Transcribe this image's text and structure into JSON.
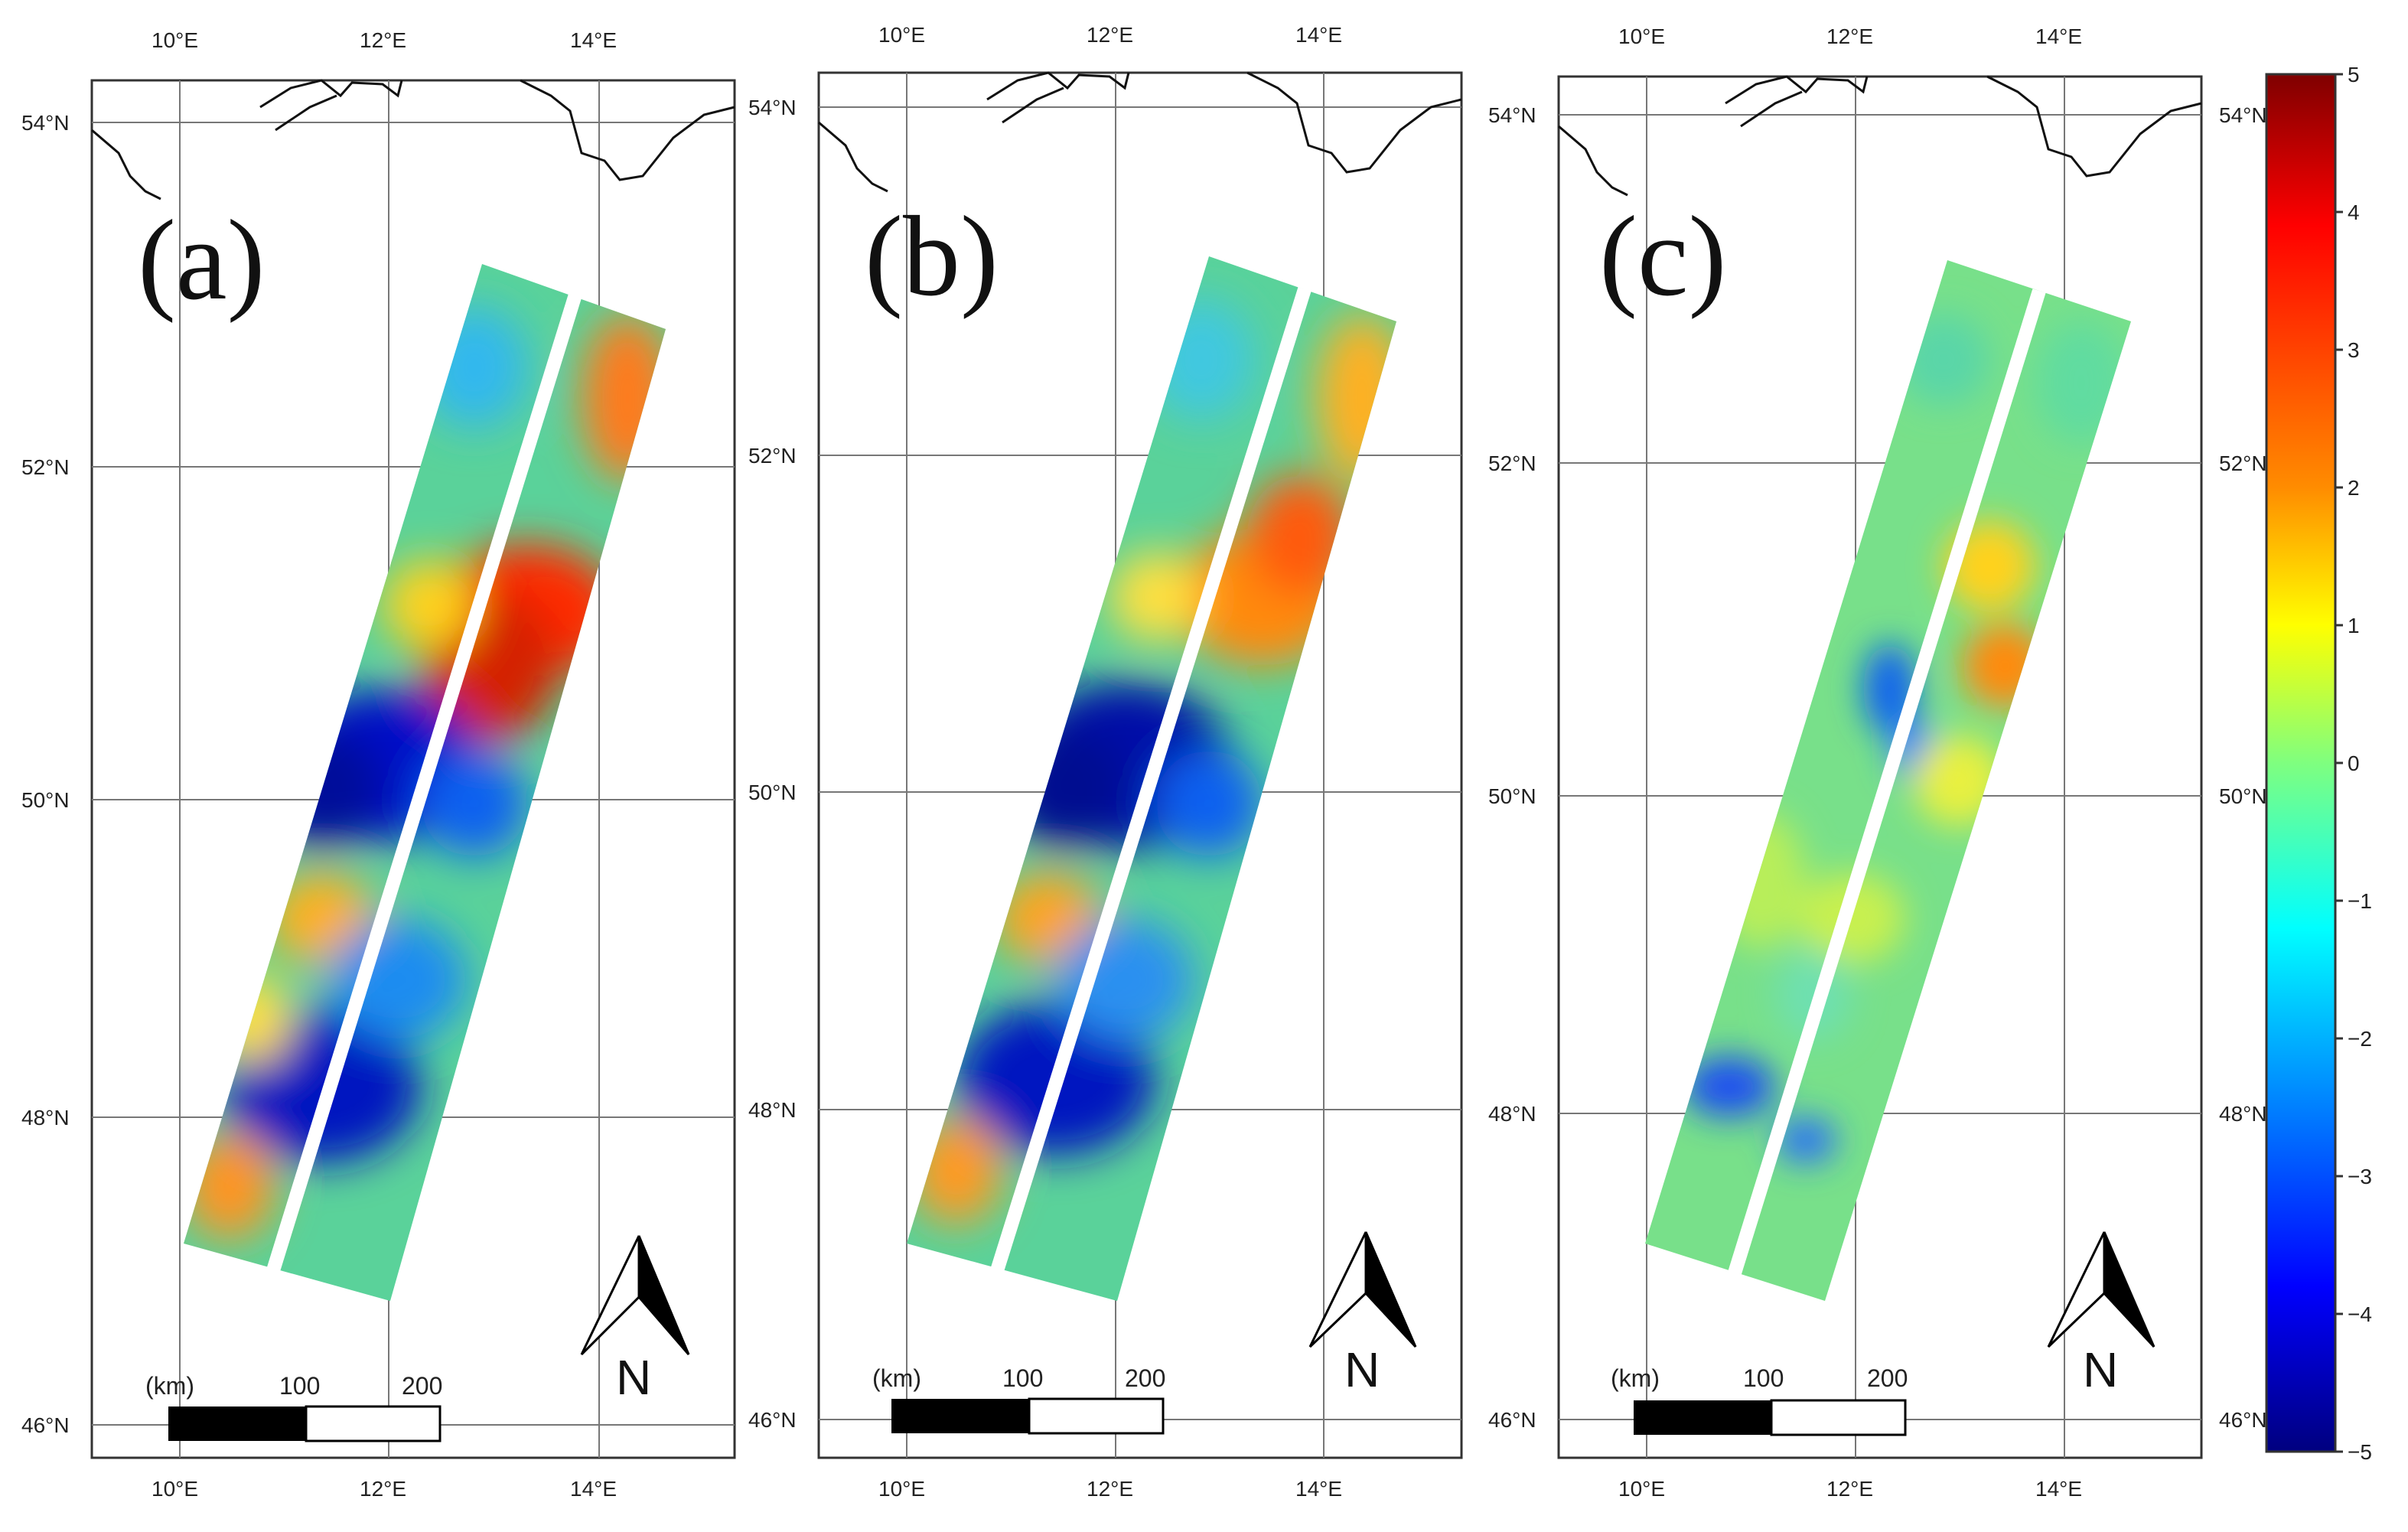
{
  "panels": [
    {
      "id": "a",
      "label": "(a)",
      "lon_labels": [
        "10°E",
        "12°E",
        "14°E"
      ],
      "lat_labels": [
        "54°N",
        "52°N",
        "50°N",
        "48°N",
        "46°N"
      ],
      "scale_labels": [
        "(km)",
        "100",
        "200"
      ],
      "north_label": "N"
    },
    {
      "id": "b",
      "label": "(b)",
      "lon_labels": [
        "10°E",
        "12°E",
        "14°E"
      ],
      "lat_labels": [
        "54°N",
        "52°N",
        "50°N",
        "48°N",
        "46°N"
      ],
      "scale_labels": [
        "(km)",
        "100",
        "200"
      ],
      "north_label": "N"
    },
    {
      "id": "c",
      "label": "(c)",
      "lon_labels": [
        "10°E",
        "12°E",
        "14°E"
      ],
      "lat_labels": [
        "54°N",
        "52°N",
        "50°N",
        "48°N",
        "46°N"
      ],
      "scale_labels": [
        "(km)",
        "100",
        "200"
      ],
      "north_label": "N"
    }
  ],
  "colorbar": {
    "ticks": [
      "5",
      "4",
      "3",
      "2",
      "1",
      "0",
      "−1",
      "−2",
      "−3",
      "−4",
      "−5"
    ],
    "range": [
      -5,
      5
    ],
    "colors": [
      "#7f0000",
      "#ff0000",
      "#ff7f00",
      "#ffff00",
      "#7fff7f",
      "#00ffff",
      "#007fff",
      "#0000ff",
      "#00007f"
    ]
  },
  "colors": {
    "strip_base": "#5ad29a",
    "gap": "#ffffff"
  }
}
